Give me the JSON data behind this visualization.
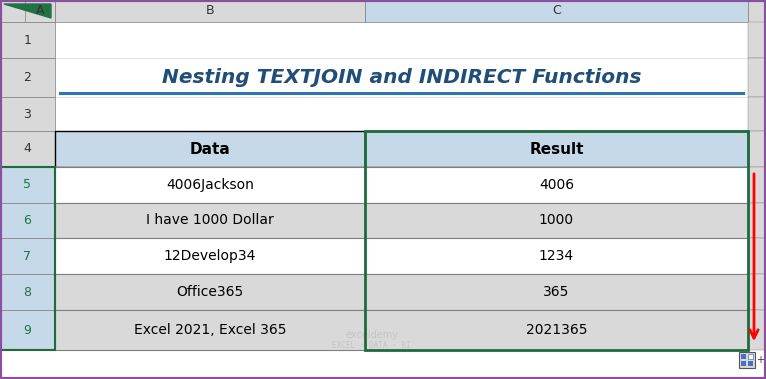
{
  "title": "Nesting TEXTJOIN and INDIRECT Functions",
  "title_color": "#1F4E79",
  "title_fontsize": 14.5,
  "col_headers": [
    "Data",
    "Result"
  ],
  "rows": [
    [
      "4006Jackson",
      "4006"
    ],
    [
      "I have 1000 Dollar",
      "1000"
    ],
    [
      "12Develop34",
      "1234"
    ],
    [
      "Office365",
      "365"
    ],
    [
      "Excel 2021, Excel 365",
      "2021365"
    ]
  ],
  "header_bg": "#C5D9E8",
  "row_bg_white": "#FFFFFF",
  "row_bg_gray": "#D9D9D9",
  "col_header_bg": "#D9D9D9",
  "col_header_selected_bg": "#C5D9E8",
  "row_header_bg": "#D9D9D9",
  "row_header_selected_bg": "#C5D9E8",
  "green_border_color": "#1E6B3C",
  "watermark_line1": "exceldemy",
  "watermark_line2": "EXCEL · DATA · BI",
  "red_arrow_color": "#FF0000",
  "fig_bg": "#FFFFFF",
  "outer_border": "#7F7F7F",
  "inner_border": "#7F7F7F",
  "table_outer_border": "#000000",
  "col_A_label": "A",
  "col_B_label": "B",
  "col_C_label": "C",
  "row_labels": [
    "1",
    "2",
    "3",
    "4",
    "5",
    "6",
    "7",
    "8",
    "9"
  ],
  "corner_tri_color": "#217346"
}
